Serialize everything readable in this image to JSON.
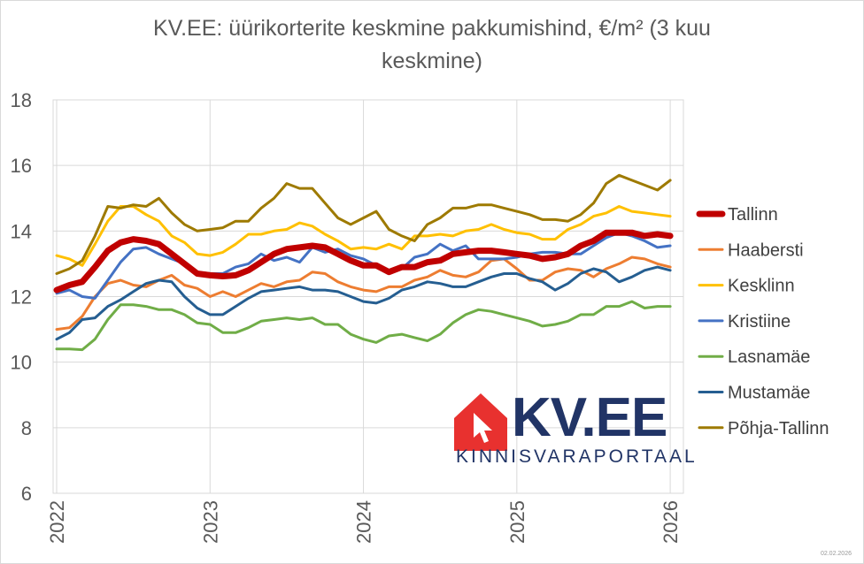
{
  "chart_data": {
    "type": "line",
    "title": "KV.EE: üürikorterite keskmine pakkumishind, €/m² (3 kuu keskmine)",
    "title_lines": [
      "KV.EE: üürikorterite keskmine pakkumishind, €/m² (3 kuu",
      "keskmine)"
    ],
    "x_start": "2022-01",
    "x_interval": "month",
    "x_tick_labels": [
      "2022",
      "2023",
      "2024",
      "2025",
      "2026"
    ],
    "y_tick_labels": [
      "6",
      "8",
      "10",
      "12",
      "14",
      "16",
      "18"
    ],
    "ylim": [
      6,
      18
    ],
    "grid": true,
    "legend_position": "right",
    "series": [
      {
        "name": "Tallinn",
        "color": "#c00000",
        "values": [
          12.2,
          12.35,
          12.45,
          12.9,
          13.4,
          13.65,
          13.75,
          13.7,
          13.6,
          13.3,
          13.0,
          12.7,
          12.65,
          12.62,
          12.65,
          12.8,
          13.05,
          13.3,
          13.45,
          13.5,
          13.55,
          13.5,
          13.3,
          13.1,
          12.95,
          12.95,
          12.75,
          12.9,
          12.9,
          13.05,
          13.1,
          13.3,
          13.35,
          13.4,
          13.4,
          13.35,
          13.3,
          13.25,
          13.15,
          13.2,
          13.3,
          13.55,
          13.7,
          13.95,
          13.95,
          13.95,
          13.85,
          13.9,
          13.85
        ]
      },
      {
        "name": "Haabersti",
        "color": "#ed7d31",
        "values": [
          11.0,
          11.05,
          11.4,
          12.0,
          12.4,
          12.5,
          12.35,
          12.3,
          12.5,
          12.65,
          12.35,
          12.25,
          12.0,
          12.15,
          12.0,
          12.2,
          12.4,
          12.3,
          12.45,
          12.5,
          12.75,
          12.7,
          12.45,
          12.3,
          12.2,
          12.15,
          12.3,
          12.3,
          12.5,
          12.6,
          12.8,
          12.65,
          12.6,
          12.75,
          13.1,
          13.15,
          12.85,
          12.5,
          12.5,
          12.75,
          12.85,
          12.8,
          12.6,
          12.85,
          13.0,
          13.2,
          13.15,
          13.0,
          12.9
        ]
      },
      {
        "name": "Kesklinn",
        "color": "#ffc000",
        "values": [
          13.25,
          13.15,
          12.95,
          13.6,
          14.3,
          14.75,
          14.75,
          14.5,
          14.3,
          13.85,
          13.65,
          13.3,
          13.25,
          13.35,
          13.6,
          13.9,
          13.9,
          14.0,
          14.05,
          14.25,
          14.15,
          13.9,
          13.7,
          13.45,
          13.5,
          13.45,
          13.6,
          13.45,
          13.85,
          13.85,
          13.9,
          13.85,
          14.0,
          14.05,
          14.2,
          14.05,
          13.95,
          13.9,
          13.75,
          13.75,
          14.05,
          14.2,
          14.45,
          14.55,
          14.75,
          14.6,
          14.55,
          14.5,
          14.45
        ]
      },
      {
        "name": "Kristiine",
        "color": "#4472c4",
        "values": [
          12.1,
          12.2,
          12.0,
          11.95,
          12.5,
          13.05,
          13.45,
          13.5,
          13.3,
          13.15,
          13.0,
          12.75,
          12.7,
          12.7,
          12.9,
          13.0,
          13.3,
          13.1,
          13.2,
          13.05,
          13.5,
          13.35,
          13.45,
          13.25,
          13.15,
          12.95,
          12.75,
          12.85,
          13.2,
          13.3,
          13.6,
          13.4,
          13.55,
          13.15,
          13.15,
          13.15,
          13.2,
          13.3,
          13.35,
          13.35,
          13.3,
          13.3,
          13.55,
          13.8,
          13.95,
          13.85,
          13.7,
          13.5,
          13.55
        ]
      },
      {
        "name": "Lasnamäe",
        "color": "#70ad47",
        "values": [
          10.4,
          10.4,
          10.38,
          10.7,
          11.3,
          11.75,
          11.75,
          11.7,
          11.6,
          11.6,
          11.45,
          11.2,
          11.15,
          10.9,
          10.9,
          11.05,
          11.25,
          11.3,
          11.35,
          11.3,
          11.35,
          11.15,
          11.15,
          10.85,
          10.7,
          10.6,
          10.8,
          10.85,
          10.75,
          10.65,
          10.85,
          11.2,
          11.45,
          11.6,
          11.55,
          11.45,
          11.35,
          11.25,
          11.1,
          11.15,
          11.25,
          11.45,
          11.45,
          11.7,
          11.7,
          11.85,
          11.65,
          11.7,
          11.7
        ]
      },
      {
        "name": "Mustamäe",
        "color": "#255e91",
        "values": [
          10.7,
          10.9,
          11.3,
          11.35,
          11.7,
          11.9,
          12.15,
          12.4,
          12.5,
          12.45,
          12.0,
          11.65,
          11.45,
          11.45,
          11.7,
          11.95,
          12.15,
          12.2,
          12.25,
          12.3,
          12.2,
          12.2,
          12.15,
          12.0,
          11.85,
          11.8,
          11.95,
          12.2,
          12.3,
          12.45,
          12.4,
          12.3,
          12.3,
          12.45,
          12.6,
          12.7,
          12.7,
          12.55,
          12.45,
          12.2,
          12.4,
          12.7,
          12.85,
          12.75,
          12.45,
          12.6,
          12.8,
          12.9,
          12.8
        ]
      },
      {
        "name": "Põhja-Tallinn",
        "color": "#9e7a00",
        "values": [
          12.7,
          12.85,
          13.1,
          13.85,
          14.75,
          14.7,
          14.8,
          14.75,
          15.0,
          14.55,
          14.2,
          14.0,
          14.05,
          14.1,
          14.3,
          14.3,
          14.7,
          15.0,
          15.45,
          15.3,
          15.3,
          14.85,
          14.4,
          14.2,
          14.4,
          14.6,
          14.05,
          13.85,
          13.7,
          14.2,
          14.4,
          14.7,
          14.7,
          14.8,
          14.8,
          14.7,
          14.6,
          14.5,
          14.35,
          14.35,
          14.3,
          14.5,
          14.85,
          15.45,
          15.7,
          15.55,
          15.4,
          15.25,
          15.55
        ]
      }
    ]
  },
  "logo": {
    "brand": "KV.EE",
    "subtitle": "KINNISVARAPORTAAL",
    "color": "#213466",
    "icon_color": "#e8312f",
    "icon": "house-cursor-icon"
  },
  "footer": {
    "date": "02.02.2026"
  }
}
